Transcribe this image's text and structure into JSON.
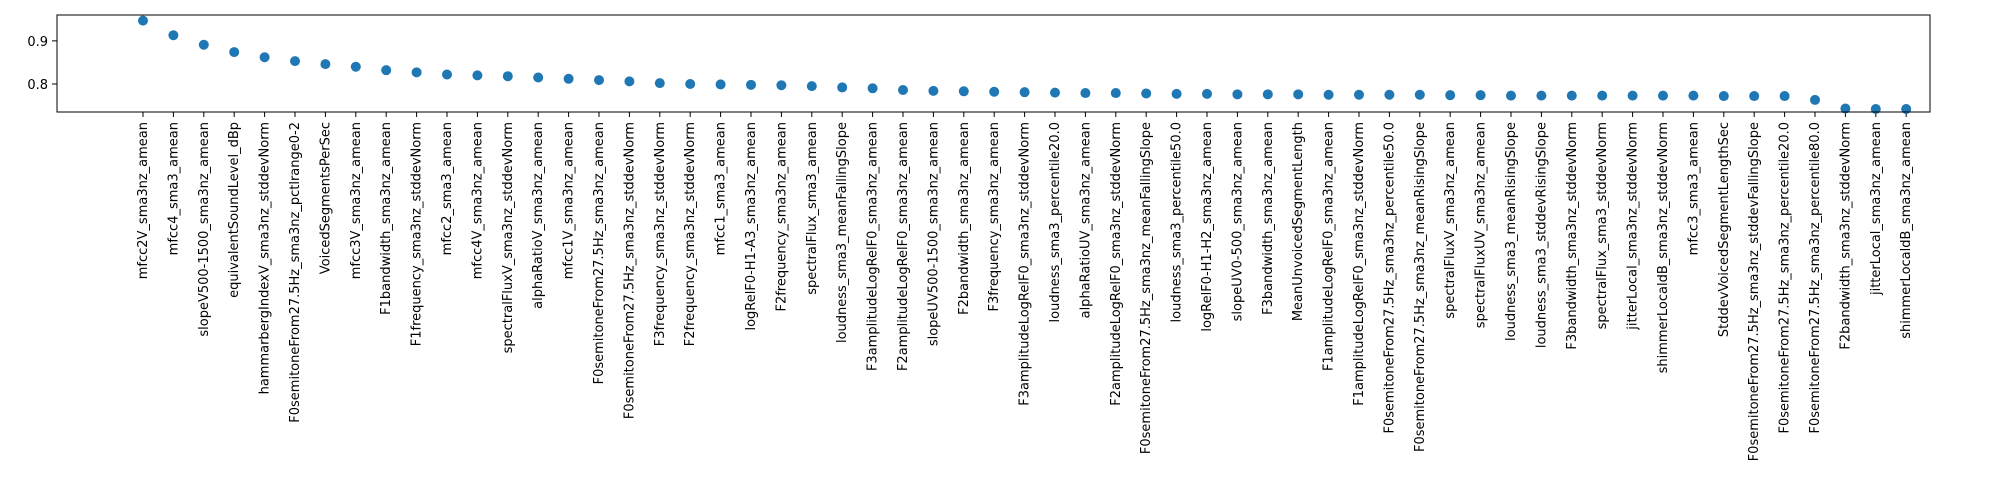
{
  "chart_data": {
    "type": "scatter",
    "title": "",
    "xlabel": "",
    "ylabel": "",
    "ylim": [
      0.735,
      0.96
    ],
    "yticks": [
      0.8,
      0.9
    ],
    "ytick_labels": [
      "0.8",
      "0.9"
    ],
    "grid": false,
    "marker_color": "#1f77b4",
    "categories": [
      "mfcc2V_sma3nz_amean",
      "mfcc4_sma3_amean",
      "slopeV500-1500_sma3nz_amean",
      "equivalentSoundLevel_dBp",
      "hammarbergIndexV_sma3nz_stddevNorm",
      "F0semitoneFrom27.5Hz_sma3nz_pctlrange0-2",
      "VoicedSegmentsPerSec",
      "mfcc3V_sma3nz_amean",
      "F1bandwidth_sma3nz_amean",
      "F1frequency_sma3nz_stddevNorm",
      "mfcc2_sma3_amean",
      "mfcc4V_sma3nz_amean",
      "spectralFluxV_sma3nz_stddevNorm",
      "alphaRatioV_sma3nz_amean",
      "mfcc1V_sma3nz_amean",
      "F0semitoneFrom27.5Hz_sma3nz_amean",
      "F0semitoneFrom27.5Hz_sma3nz_stddevNorm",
      "F3frequency_sma3nz_stddevNorm",
      "F2frequency_sma3nz_stddevNorm",
      "mfcc1_sma3_amean",
      "logRelF0-H1-A3_sma3nz_amean",
      "F2frequency_sma3nz_amean",
      "spectralFlux_sma3_amean",
      "loudness_sma3_meanFallingSlope",
      "F3amplitudeLogRelF0_sma3nz_amean",
      "F2amplitudeLogRelF0_sma3nz_amean",
      "slopeUV500-1500_sma3nz_amean",
      "F2bandwidth_sma3nz_amean",
      "F3frequency_sma3nz_amean",
      "F3amplitudeLogRelF0_sma3nz_stddevNorm",
      "loudness_sma3_percentile20.0",
      "alphaRatioUV_sma3nz_amean",
      "F2amplitudeLogRelF0_sma3nz_stddevNorm",
      "F0semitoneFrom27.5Hz_sma3nz_meanFallingSlope",
      "loudness_sma3_percentile50.0",
      "logRelF0-H1-H2_sma3nz_amean",
      "slopeUV0-500_sma3nz_amean",
      "F3bandwidth_sma3nz_amean",
      "MeanUnvoicedSegmentLength",
      "F1amplitudeLogRelF0_sma3nz_amean",
      "F1amplitudeLogRelF0_sma3nz_stddevNorm",
      "F0semitoneFrom27.5Hz_sma3nz_percentile50.0",
      "F0semitoneFrom27.5Hz_sma3nz_meanRisingSlope",
      "spectralFluxV_sma3nz_amean",
      "spectralFluxUV_sma3nz_amean",
      "loudness_sma3_meanRisingSlope",
      "loudness_sma3_stddevRisingSlope",
      "F3bandwidth_sma3nz_stddevNorm",
      "spectralFlux_sma3_stddevNorm",
      "jitterLocal_sma3nz_stddevNorm",
      "shimmerLocaldB_sma3nz_stddevNorm",
      "mfcc3_sma3_amean",
      "StddevVoicedSegmentLengthSec",
      "F0semitoneFrom27.5Hz_sma3nz_stddevFallingSlope",
      "F0semitoneFrom27.5Hz_sma3nz_percentile20.0",
      "F0semitoneFrom27.5Hz_sma3nz_percentile80.0",
      "F2bandwidth_sma3nz_stddevNorm",
      "jitterLocal_sma3nz_amean",
      "shimmerLocaldB_sma3nz_amean"
    ],
    "values": [
      0.947,
      0.913,
      0.891,
      0.874,
      0.862,
      0.853,
      0.846,
      0.84,
      0.832,
      0.827,
      0.822,
      0.82,
      0.818,
      0.815,
      0.812,
      0.809,
      0.806,
      0.802,
      0.8,
      0.799,
      0.798,
      0.797,
      0.795,
      0.792,
      0.79,
      0.786,
      0.784,
      0.783,
      0.782,
      0.781,
      0.78,
      0.779,
      0.779,
      0.778,
      0.777,
      0.777,
      0.776,
      0.776,
      0.776,
      0.775,
      0.775,
      0.775,
      0.775,
      0.774,
      0.774,
      0.773,
      0.773,
      0.773,
      0.773,
      0.773,
      0.773,
      0.773,
      0.772,
      0.772,
      0.772,
      0.763,
      0.743,
      0.742,
      0.742
    ]
  }
}
